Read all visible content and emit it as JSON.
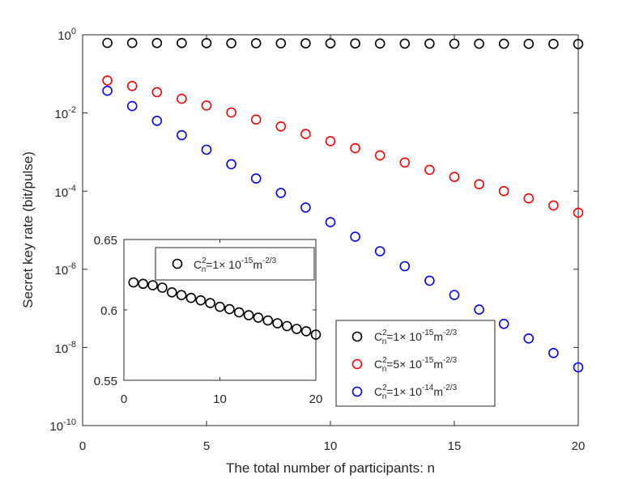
{
  "chart_data": [
    {
      "type": "scatter",
      "xlabel": "The total number of participants: n",
      "ylabel": "Secret key rate (bit/pulse)",
      "xlim": [
        0,
        20
      ],
      "ylim_log10": [
        -10,
        0
      ],
      "yscale": "log",
      "x_ticks": [
        "0",
        "5",
        "10",
        "15",
        "20"
      ],
      "y_ticks": [
        {
          "base": "10",
          "exp": "0"
        },
        {
          "base": "10",
          "exp": "-2"
        },
        {
          "base": "10",
          "exp": "-4"
        },
        {
          "base": "10",
          "exp": "-6"
        },
        {
          "base": "10",
          "exp": "-8"
        },
        {
          "base": "10",
          "exp": "-10"
        }
      ],
      "x": [
        1,
        2,
        3,
        4,
        5,
        6,
        7,
        8,
        9,
        10,
        11,
        12,
        13,
        14,
        15,
        16,
        17,
        18,
        19,
        20
      ],
      "series": [
        {
          "name": "C_n^2=1×10^-15 m^-2/3",
          "color": "#000000",
          "legend": {
            "pre": "C",
            "sup1": "2",
            "sub": "n",
            "mid": "=1× 10",
            "sup2": "-15",
            "unit": "m",
            "sup3": "-2/3"
          },
          "values": [
            0.62,
            0.618,
            0.616,
            0.615,
            0.612,
            0.61,
            0.608,
            0.606,
            0.604,
            0.602,
            0.6,
            0.598,
            0.596,
            0.594,
            0.592,
            0.59,
            0.588,
            0.586,
            0.584,
            0.582
          ]
        },
        {
          "name": "C_n^2=5×10^-15 m^-2/3",
          "color": "#ff0000",
          "legend": {
            "pre": "C",
            "sup1": "2",
            "sub": "n",
            "mid": "=5× 10",
            "sup2": "-15",
            "unit": "m",
            "sup3": "-2/3"
          },
          "values": [
            0.068,
            0.049,
            0.034,
            0.023,
            0.0155,
            0.0103,
            0.0068,
            0.0045,
            0.0029,
            0.0019,
            0.00125,
            0.00082,
            0.00054,
            0.00035,
            0.00023,
            0.00015,
            0.0001,
            6.5e-05,
            4.3e-05,
            2.8e-05
          ]
        },
        {
          "name": "C_n^2=1×10^-14 m^-2/3",
          "color": "#0000ff",
          "legend": {
            "pre": "C",
            "sup1": "2",
            "sub": "n",
            "mid": "=1× 10",
            "sup2": "-14",
            "unit": "m",
            "sup3": "-2/3"
          },
          "values": [
            0.037,
            0.015,
            0.0063,
            0.0027,
            0.00115,
            0.00049,
            0.00021,
            9e-05,
            3.8e-05,
            1.6e-05,
            6.8e-06,
            2.9e-06,
            1.2e-06,
            5.1e-07,
            2.2e-07,
            9.3e-08,
            4e-08,
            1.7e-08,
            7.2e-09,
            3.1e-09
          ]
        }
      ],
      "legend_position": "bottom-right"
    },
    {
      "type": "scatter",
      "inset": true,
      "xlim": [
        0,
        20
      ],
      "ylim": [
        0.55,
        0.65
      ],
      "x_ticks": [
        "0",
        "10",
        "20"
      ],
      "y_ticks": [
        "0.55",
        "0.6",
        "0.65"
      ],
      "x": [
        1,
        2,
        3,
        4,
        5,
        6,
        7,
        8,
        9,
        10,
        11,
        12,
        13,
        14,
        15,
        16,
        17,
        18,
        19,
        20
      ],
      "series": [
        {
          "name": "C_n^2=1×10^-15 m^-2/3",
          "color": "#000000",
          "legend": {
            "pre": "C",
            "sup1": "2",
            "sub": "n",
            "mid": "=1× 10",
            "sup2": "-15",
            "unit": "m",
            "sup3": "-2/3"
          },
          "values": [
            0.6195,
            0.6185,
            0.6175,
            0.6158,
            0.6125,
            0.6105,
            0.6085,
            0.6068,
            0.6048,
            0.6022,
            0.6005,
            0.5982,
            0.5962,
            0.5945,
            0.5925,
            0.5905,
            0.5885,
            0.5865,
            0.5848,
            0.5825
          ]
        }
      ],
      "legend_position": "top"
    }
  ]
}
